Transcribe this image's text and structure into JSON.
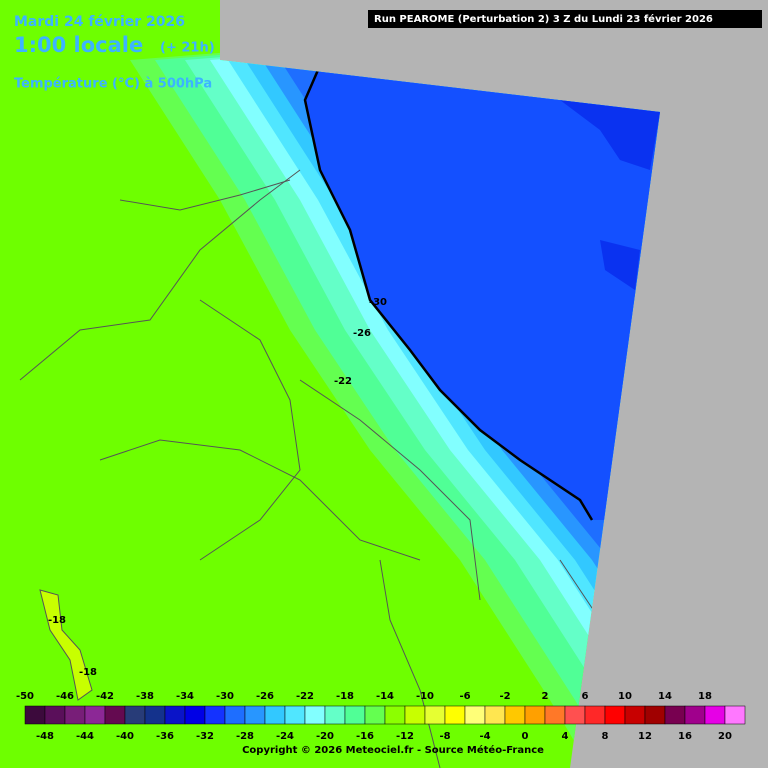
{
  "header": {
    "date": "Mardi 24 février 2026",
    "time": "1:00 locale",
    "lead": "(+ 21h)",
    "field": "Température (°C) à 500hPa",
    "run": "Run PEAROME (Perturbation 2) 3 Z du Lundi 23 février 2026"
  },
  "contour_labels": [
    -30,
    -26,
    -22,
    -18,
    -18
  ],
  "colorbar": {
    "labels_top": [
      -50,
      -46,
      -42,
      -38,
      -34,
      -30,
      -26,
      -22,
      -18,
      -14,
      -10,
      -6,
      -2,
      2,
      6,
      10,
      14,
      18
    ],
    "labels_bottom": [
      -48,
      -44,
      -40,
      -36,
      -32,
      -28,
      -24,
      -20,
      -16,
      -12,
      -8,
      -4,
      0,
      4,
      8,
      12,
      16,
      20
    ],
    "colors": [
      "#3c0a3c",
      "#5a0f5a",
      "#781e78",
      "#8c2896",
      "#640a50",
      "#283c78",
      "#14328c",
      "#0a14c8",
      "#0000e6",
      "#1432ff",
      "#1e6eff",
      "#2896ff",
      "#32c8ff",
      "#50e6ff",
      "#82ffff",
      "#64ffc8",
      "#50ff96",
      "#64ff50",
      "#8cff00",
      "#c8ff00",
      "#e6ff32",
      "#ffff00",
      "#ffff78",
      "#ffe650",
      "#ffc800",
      "#ffa000",
      "#ff7828",
      "#ff5050",
      "#ff2828",
      "#ff0000",
      "#c80000",
      "#a00000",
      "#780050",
      "#a0008c",
      "#e600e6",
      "#ff78ff"
    ]
  },
  "footer": "Copyright © 2026 Meteociel.fr - Source Météo-France"
}
